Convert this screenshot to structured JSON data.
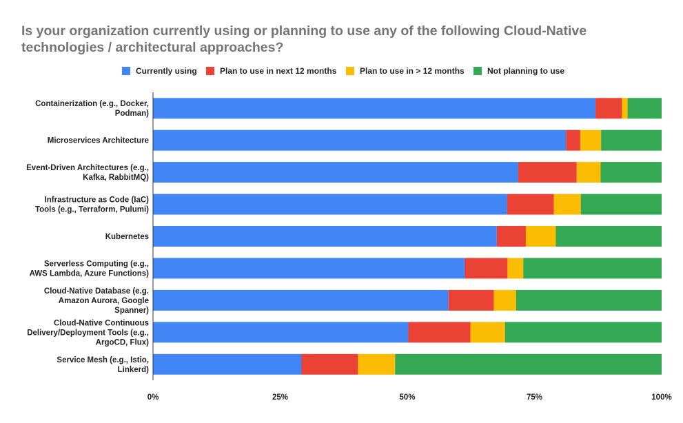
{
  "chart_data": {
    "type": "bar",
    "orientation": "horizontal",
    "stacked": "percent",
    "title": "Is your organization currently using or planning to use any of the following Cloud-Native technologies / architectural approaches?",
    "categories": [
      [
        "Containerization (e.g., Docker,",
        "Podman)"
      ],
      [
        "Microservices Architecture"
      ],
      [
        "Event-Driven Architectures (e.g.,",
        "Kafka, RabbitMQ)"
      ],
      [
        "Infrastructure as Code (IaC)",
        "Tools (e.g., Terraform, Pulumi)"
      ],
      [
        "Kubernetes"
      ],
      [
        "Serverless Computing (e.g.,",
        "AWS Lambda, Azure Functions)"
      ],
      [
        "Cloud-Native Database (e.g.",
        "Amazon Aurora, Google",
        "Spanner)"
      ],
      [
        "Cloud-Native Continuous",
        "Delivery/Deployment Tools (e.g.,",
        "ArgoCD, Flux)"
      ],
      [
        "Service Mesh (e.g., Istio,",
        "Linkerd)"
      ]
    ],
    "series": [
      {
        "name": "Currently using",
        "color": "#4285F4",
        "values": [
          87,
          81.2,
          71.8,
          69.6,
          67.6,
          61.3,
          58.1,
          50.2,
          29.2
        ]
      },
      {
        "name": "Plan to use in next 12 months",
        "color": "#EA4335",
        "values": [
          5.2,
          2.8,
          11.5,
          9.2,
          5.7,
          8.4,
          8.9,
          12.2,
          11.1
        ]
      },
      {
        "name": "Plan to use in > 12 months",
        "color": "#FBBC04",
        "values": [
          1.1,
          4.1,
          4.7,
          5.3,
          5.9,
          3.1,
          4.4,
          6.8,
          7.3
        ]
      },
      {
        "name": "Not planning to use",
        "color": "#34A853",
        "values": [
          6.7,
          11.9,
          12.0,
          15.9,
          20.8,
          27.2,
          28.6,
          30.8,
          52.4
        ]
      }
    ],
    "xticks": [
      "0%",
      "25%",
      "50%",
      "75%",
      "100%"
    ],
    "xlim": [
      0,
      100
    ],
    "legend_position": "top",
    "grid": false
  }
}
